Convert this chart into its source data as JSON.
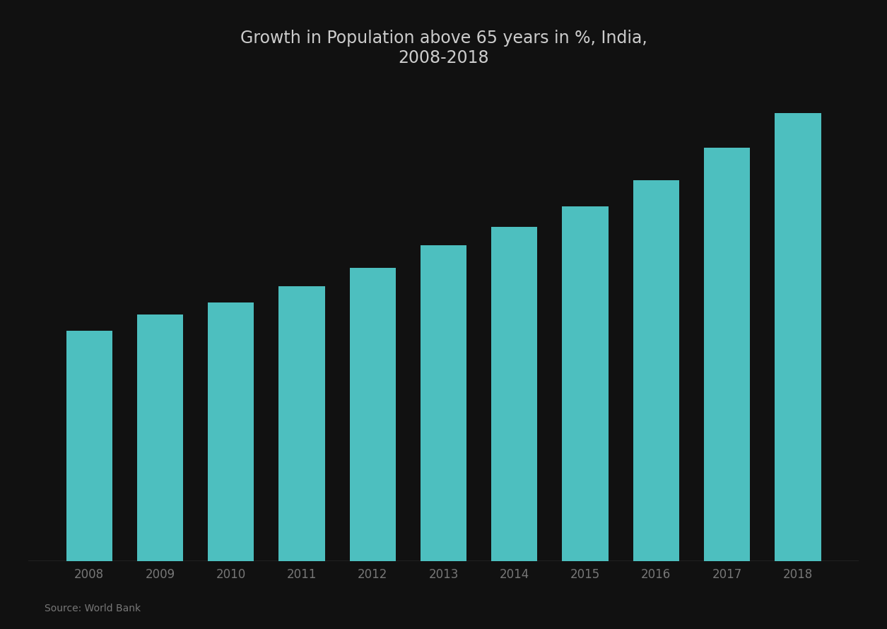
{
  "title_line1": "Growth in Population above 65 years in %, India,",
  "title_line2": "2008-2018",
  "categories": [
    "2008",
    "2009",
    "2010",
    "2011",
    "2012",
    "2013",
    "2014",
    "2015",
    "2016",
    "2017",
    "2018"
  ],
  "values": [
    56.5,
    60.5,
    63.5,
    67.5,
    72.0,
    77.5,
    82.0,
    87.0,
    93.5,
    101.5,
    110.0
  ],
  "bar_color": "#4DBFBF",
  "background_color": "#111111",
  "title_color": "#cccccc",
  "tick_label_color": "#777777",
  "source_text": "Source: World Bank",
  "ylim": [
    0,
    118
  ],
  "title_fontsize": 17,
  "tick_fontsize": 12,
  "bar_width": 0.65
}
